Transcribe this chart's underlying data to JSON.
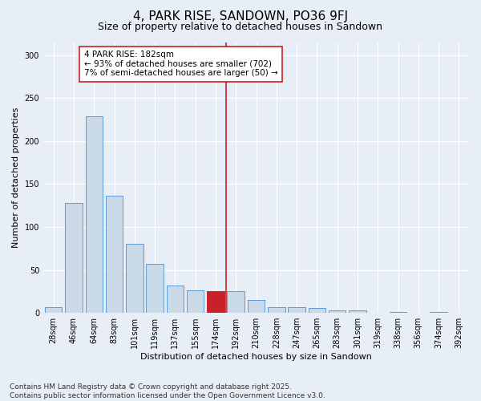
{
  "title": "4, PARK RISE, SANDOWN, PO36 9FJ",
  "subtitle": "Size of property relative to detached houses in Sandown",
  "xlabel": "Distribution of detached houses by size in Sandown",
  "ylabel": "Number of detached properties",
  "bin_labels": [
    "28sqm",
    "46sqm",
    "64sqm",
    "83sqm",
    "101sqm",
    "119sqm",
    "137sqm",
    "155sqm",
    "174sqm",
    "192sqm",
    "210sqm",
    "228sqm",
    "247sqm",
    "265sqm",
    "283sqm",
    "301sqm",
    "319sqm",
    "338sqm",
    "356sqm",
    "374sqm",
    "392sqm"
  ],
  "bar_values": [
    7,
    128,
    229,
    136,
    80,
    57,
    32,
    26,
    25,
    25,
    15,
    7,
    7,
    6,
    3,
    3,
    0,
    1,
    0,
    1,
    0
  ],
  "bar_color": "#c9d9e8",
  "bar_edge_color": "#5b9bd5",
  "highlight_bar_index": 8,
  "highlight_bar_color": "#c9202a",
  "highlight_bar_edge_color": "#c9202a",
  "vline_x": 8.5,
  "vline_color": "#c9202a",
  "annotation_text": "4 PARK RISE: 182sqm\n← 93% of detached houses are smaller (702)\n7% of semi-detached houses are larger (50) →",
  "annotation_box_color": "#ffffff",
  "annotation_box_edge_color": "#c9202a",
  "ylim": [
    0,
    315
  ],
  "yticks": [
    0,
    50,
    100,
    150,
    200,
    250,
    300
  ],
  "footer": "Contains HM Land Registry data © Crown copyright and database right 2025.\nContains public sector information licensed under the Open Government Licence v3.0.",
  "bg_color": "#e8eef5",
  "plot_bg_color": "#e8eef5",
  "grid_color": "#ffffff",
  "title_fontsize": 11,
  "subtitle_fontsize": 9,
  "axis_label_fontsize": 8,
  "tick_fontsize": 7,
  "annotation_fontsize": 7.5,
  "footer_fontsize": 6.5
}
